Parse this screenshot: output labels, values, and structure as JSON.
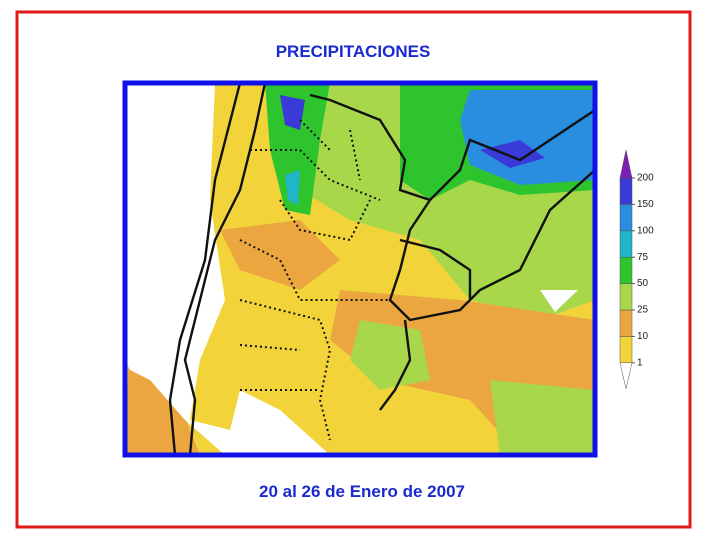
{
  "title": "PRECIPITACIONES",
  "subtitle": "20  al 26 de Enero de 2007",
  "legend": {
    "ticks": [
      1,
      10,
      25,
      50,
      75,
      100,
      150,
      200
    ],
    "colors": [
      "#ffffff",
      "#f2d43a",
      "#eca640",
      "#a8d84a",
      "#2ec42e",
      "#22b4c8",
      "#2a8ee0",
      "#3a3ad8",
      "#7a1eb4"
    ]
  }
}
